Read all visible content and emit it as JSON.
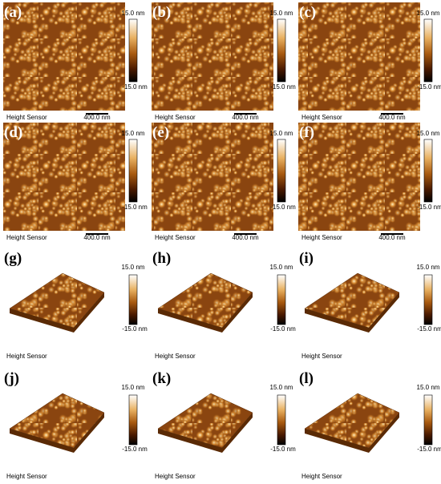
{
  "panels": [
    {
      "label": "(a)",
      "scale_max": "15.0 nm",
      "scale_min": "-15.0 nm",
      "caption": "Height Sensor",
      "scale_bar": "400.0 nm"
    },
    {
      "label": "(b)",
      "scale_max": "15.0 nm",
      "scale_min": "-15.0 nm",
      "caption": "Height Sensor",
      "scale_bar": "400.0 nm"
    },
    {
      "label": "(c)",
      "scale_max": "15.0 nm",
      "scale_min": "-15.0 nm",
      "caption": "Height Sensor",
      "scale_bar": "400.0 nm"
    },
    {
      "label": "(d)",
      "scale_max": "15.0 nm",
      "scale_min": "-15.0 nm",
      "caption": "Height Sensor",
      "scale_bar": "400.0 nm"
    },
    {
      "label": "(e)",
      "scale_max": "15.0 nm",
      "scale_min": "-15.0 nm",
      "caption": "Height Sensor",
      "scale_bar": "400.0 nm"
    },
    {
      "label": "(f)",
      "scale_max": "15.0 nm",
      "scale_min": "-15.0 nm",
      "caption": "Height Sensor",
      "scale_bar": "400.0 nm"
    },
    {
      "label": "(g)",
      "scale_max": "15.0 nm",
      "scale_min": "-15.0 nm",
      "caption": "Height Sensor"
    },
    {
      "label": "(h)",
      "scale_max": "15.0 nm",
      "scale_min": "-15.0 nm",
      "caption": "Height Sensor"
    },
    {
      "label": "(i)",
      "scale_max": "15.0 nm",
      "scale_min": "-15.0 nm",
      "caption": "Height Sensor"
    },
    {
      "label": "(j)",
      "scale_max": "15.0 nm",
      "scale_min": "-15.0 nm",
      "caption": "Height Sensor"
    },
    {
      "label": "(k)",
      "scale_max": "15.0 nm",
      "scale_min": "-15.0 nm",
      "caption": "Height Sensor"
    },
    {
      "label": "(l)",
      "scale_max": "15.0 nm",
      "scale_min": "-15.0 nm",
      "caption": "Height Sensor"
    }
  ]
}
